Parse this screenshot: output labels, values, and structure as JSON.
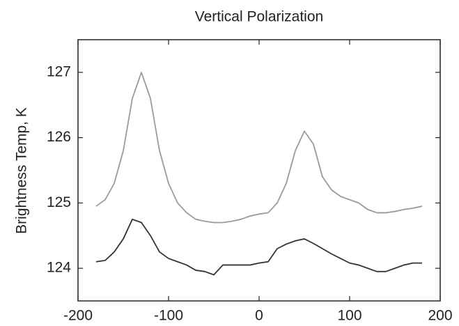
{
  "chart_data": {
    "type": "line",
    "title": "Vertical Polarization",
    "ylabel": "Brightness Temp, K",
    "x": [
      -180,
      -170,
      -160,
      -150,
      -140,
      -130,
      -120,
      -110,
      -100,
      -90,
      -80,
      -70,
      -60,
      -50,
      -40,
      -30,
      -20,
      -10,
      0,
      10,
      20,
      30,
      40,
      50,
      60,
      70,
      80,
      90,
      100,
      110,
      120,
      130,
      140,
      150,
      160,
      170,
      180
    ],
    "series": [
      {
        "color": "#9a9a9a",
        "values": [
          124.95,
          125.05,
          125.3,
          125.8,
          126.6,
          127.0,
          126.6,
          125.8,
          125.3,
          125.0,
          124.85,
          124.75,
          124.72,
          124.7,
          124.7,
          124.72,
          124.75,
          124.8,
          124.83,
          124.85,
          125.0,
          125.3,
          125.8,
          126.1,
          125.9,
          125.4,
          125.2,
          125.1,
          125.05,
          125.0,
          124.9,
          124.85,
          124.85,
          124.87,
          124.9,
          124.92,
          124.95
        ]
      },
      {
        "color": "#333333",
        "values": [
          124.1,
          124.12,
          124.25,
          124.45,
          124.75,
          124.7,
          124.5,
          124.25,
          124.15,
          124.1,
          124.05,
          123.97,
          123.95,
          123.9,
          124.05,
          124.05,
          124.05,
          124.05,
          124.08,
          124.1,
          124.3,
          124.37,
          124.42,
          124.45,
          124.38,
          124.3,
          124.22,
          124.15,
          124.08,
          124.05,
          124.0,
          123.95,
          123.95,
          124.0,
          124.05,
          124.08,
          124.08
        ]
      }
    ],
    "xlim": [
      -200,
      200
    ],
    "xticks": [
      -200,
      -100,
      0,
      100,
      200
    ],
    "ylim": [
      123.5,
      127.5
    ],
    "yticks": [
      124,
      125,
      126,
      127
    ]
  }
}
